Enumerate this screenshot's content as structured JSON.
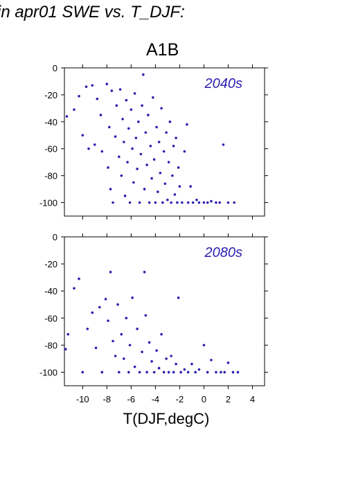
{
  "heading": "in apr01 SWE vs. T_DJF:",
  "scenario": "A1B",
  "chart_data": {
    "type": "scatter",
    "scenario": "A1B",
    "xlabel": "T(DJF,degC)",
    "xlim": [
      -11.5,
      5
    ],
    "xticks": [
      -10,
      -8,
      -6,
      -4,
      -2,
      0,
      2,
      4
    ],
    "ylim": [
      -110,
      0
    ],
    "yticks": [
      0,
      -20,
      -40,
      -60,
      -80,
      -100
    ],
    "grid": false,
    "color": "#2b1fb0",
    "panels": [
      {
        "label": "2040s",
        "points": [
          [
            -11.3,
            -36
          ],
          [
            -10.7,
            -31
          ],
          [
            -10.3,
            -21
          ],
          [
            -10.0,
            -50
          ],
          [
            -9.7,
            -14
          ],
          [
            -9.5,
            -60
          ],
          [
            -9.2,
            -13
          ],
          [
            -9.0,
            -57
          ],
          [
            -8.8,
            -23
          ],
          [
            -8.5,
            -35
          ],
          [
            -8.4,
            -62
          ],
          [
            -8.0,
            -12
          ],
          [
            -7.9,
            -74
          ],
          [
            -7.8,
            -44
          ],
          [
            -7.7,
            -90
          ],
          [
            -7.6,
            -17
          ],
          [
            -7.5,
            -100
          ],
          [
            -7.3,
            -51
          ],
          [
            -7.2,
            -28
          ],
          [
            -7.0,
            -66
          ],
          [
            -6.9,
            -16
          ],
          [
            -6.8,
            -80
          ],
          [
            -6.7,
            -38
          ],
          [
            -6.6,
            -55
          ],
          [
            -6.5,
            -95
          ],
          [
            -6.4,
            -24
          ],
          [
            -6.3,
            -70
          ],
          [
            -6.2,
            -45
          ],
          [
            -6.1,
            -100
          ],
          [
            -6.0,
            -31
          ],
          [
            -5.9,
            -60
          ],
          [
            -5.8,
            -85
          ],
          [
            -5.7,
            -19
          ],
          [
            -5.6,
            -52
          ],
          [
            -5.5,
            -75
          ],
          [
            -5.4,
            -40
          ],
          [
            -5.3,
            -100
          ],
          [
            -5.2,
            -64
          ],
          [
            -5.1,
            -28
          ],
          [
            -5.0,
            -5
          ],
          [
            -4.9,
            -90
          ],
          [
            -4.8,
            -48
          ],
          [
            -4.7,
            -72
          ],
          [
            -4.6,
            -35
          ],
          [
            -4.5,
            -100
          ],
          [
            -4.4,
            -58
          ],
          [
            -4.3,
            -82
          ],
          [
            -4.2,
            -22
          ],
          [
            -4.1,
            -68
          ],
          [
            -4.0,
            -100
          ],
          [
            -3.9,
            -44
          ],
          [
            -3.8,
            -92
          ],
          [
            -3.7,
            -55
          ],
          [
            -3.6,
            -78
          ],
          [
            -3.5,
            -30
          ],
          [
            -3.4,
            -100
          ],
          [
            -3.3,
            -62
          ],
          [
            -3.2,
            -86
          ],
          [
            -3.1,
            -48
          ],
          [
            -3.0,
            -98
          ],
          [
            -2.9,
            -70
          ],
          [
            -2.8,
            -40
          ],
          [
            -2.7,
            -100
          ],
          [
            -2.6,
            -80
          ],
          [
            -2.5,
            -58
          ],
          [
            -2.4,
            -94
          ],
          [
            -2.3,
            -52
          ],
          [
            -2.2,
            -100
          ],
          [
            -2.1,
            -74
          ],
          [
            -2.0,
            -88
          ],
          [
            -1.8,
            -100
          ],
          [
            -1.6,
            -62
          ],
          [
            -1.4,
            -42
          ],
          [
            -1.3,
            -100
          ],
          [
            -1.1,
            -88
          ],
          [
            -0.9,
            -100
          ],
          [
            -0.6,
            -98
          ],
          [
            -0.4,
            -100
          ],
          [
            0.0,
            -100
          ],
          [
            0.3,
            -100
          ],
          [
            0.6,
            -99
          ],
          [
            1.0,
            -100
          ],
          [
            1.3,
            -100
          ],
          [
            1.6,
            -57
          ],
          [
            2.0,
            -100
          ],
          [
            2.5,
            -100
          ]
        ]
      },
      {
        "label": "2080s",
        "points": [
          [
            -11.4,
            -83
          ],
          [
            -11.2,
            -72
          ],
          [
            -10.7,
            -38
          ],
          [
            -10.3,
            -31
          ],
          [
            -10.0,
            -100
          ],
          [
            -9.6,
            -68
          ],
          [
            -9.2,
            -56
          ],
          [
            -8.9,
            -82
          ],
          [
            -8.6,
            -52
          ],
          [
            -8.4,
            -100
          ],
          [
            -8.1,
            -46
          ],
          [
            -7.9,
            -62
          ],
          [
            -7.7,
            -26
          ],
          [
            -7.5,
            -77
          ],
          [
            -7.3,
            -88
          ],
          [
            -7.1,
            -50
          ],
          [
            -7.0,
            -100
          ],
          [
            -6.8,
            -72
          ],
          [
            -6.6,
            -90
          ],
          [
            -6.4,
            -60
          ],
          [
            -6.2,
            -100
          ],
          [
            -6.1,
            -80
          ],
          [
            -5.9,
            -45
          ],
          [
            -5.7,
            -96
          ],
          [
            -5.5,
            -68
          ],
          [
            -5.3,
            -100
          ],
          [
            -5.1,
            -85
          ],
          [
            -4.9,
            -26
          ],
          [
            -4.8,
            -58
          ],
          [
            -4.7,
            -100
          ],
          [
            -4.5,
            -78
          ],
          [
            -4.3,
            -92
          ],
          [
            -4.1,
            -100
          ],
          [
            -3.9,
            -84
          ],
          [
            -3.7,
            -97
          ],
          [
            -3.5,
            -72
          ],
          [
            -3.3,
            -100
          ],
          [
            -3.1,
            -90
          ],
          [
            -2.9,
            -100
          ],
          [
            -2.7,
            -88
          ],
          [
            -2.5,
            -100
          ],
          [
            -2.3,
            -94
          ],
          [
            -2.1,
            -45
          ],
          [
            -1.9,
            -100
          ],
          [
            -1.6,
            -98
          ],
          [
            -1.3,
            -100
          ],
          [
            -1.0,
            -94
          ],
          [
            -0.7,
            -100
          ],
          [
            -0.4,
            -98
          ],
          [
            0.0,
            -80
          ],
          [
            0.3,
            -100
          ],
          [
            0.6,
            -91
          ],
          [
            1.0,
            -100
          ],
          [
            1.4,
            -100
          ],
          [
            1.7,
            -100
          ],
          [
            2.0,
            -93
          ],
          [
            2.4,
            -100
          ],
          [
            2.8,
            -100
          ]
        ]
      }
    ]
  }
}
